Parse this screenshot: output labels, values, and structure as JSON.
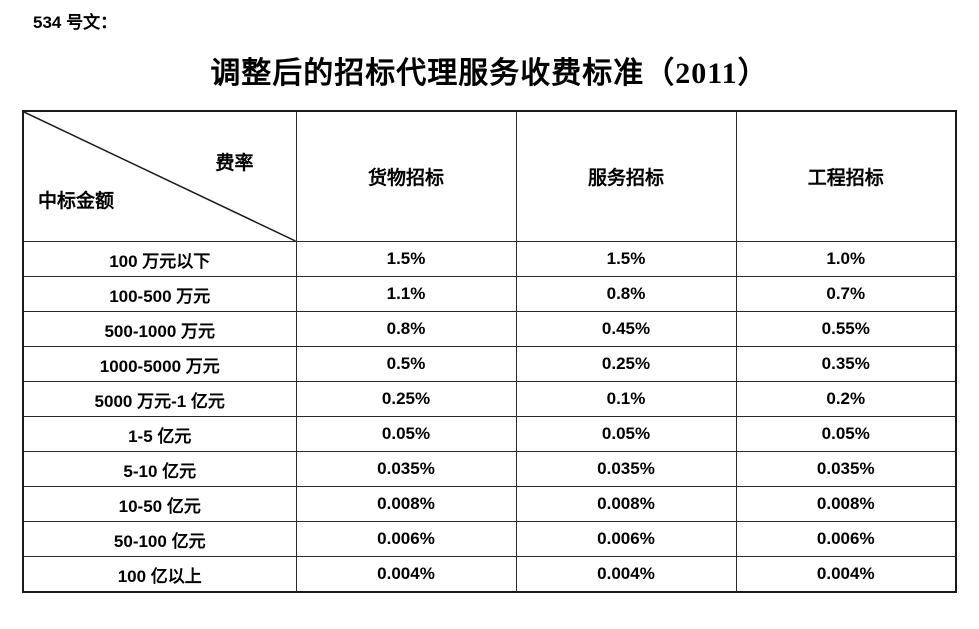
{
  "doc_ref": "534 号文：",
  "title": "调整后的招标代理服务收费标准（2011）",
  "table": {
    "corner": {
      "top_right": "费率",
      "bottom_left": "中标金额"
    },
    "columns": [
      "货物招标",
      "服务招标",
      "工程招标"
    ],
    "rows": [
      {
        "label": "100 万元以下",
        "values": [
          "1.5%",
          "1.5%",
          "1.0%"
        ]
      },
      {
        "label": "100-500 万元",
        "values": [
          "1.1%",
          "0.8%",
          "0.7%"
        ]
      },
      {
        "label": "500-1000 万元",
        "values": [
          "0.8%",
          "0.45%",
          "0.55%"
        ]
      },
      {
        "label": "1000-5000 万元",
        "values": [
          "0.5%",
          "0.25%",
          "0.35%"
        ]
      },
      {
        "label": "5000 万元-1 亿元",
        "values": [
          "0.25%",
          "0.1%",
          "0.2%"
        ]
      },
      {
        "label": "1-5 亿元",
        "values": [
          "0.05%",
          "0.05%",
          "0.05%"
        ]
      },
      {
        "label": "5-10 亿元",
        "values": [
          "0.035%",
          "0.035%",
          "0.035%"
        ]
      },
      {
        "label": "10-50 亿元",
        "values": [
          "0.008%",
          "0.008%",
          "0.008%"
        ]
      },
      {
        "label": "50-100 亿元",
        "values": [
          "0.006%",
          "0.006%",
          "0.006%"
        ]
      },
      {
        "label": "100 亿以上",
        "values": [
          "0.004%",
          "0.004%",
          "0.004%"
        ]
      }
    ]
  },
  "colors": {
    "text": "#000000",
    "border": "#2b2b2b",
    "outer_border": "#1a1a1a",
    "background": "#ffffff"
  }
}
